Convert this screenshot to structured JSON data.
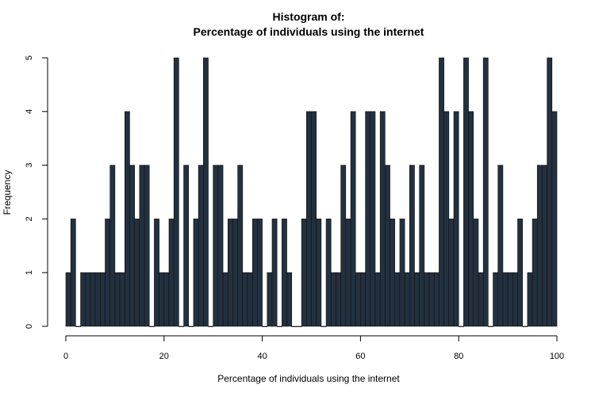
{
  "chart_data": {
    "type": "bar",
    "title": [
      "Histogram of:",
      "Percentage of individuals using the internet"
    ],
    "xlabel": "Percentage of individuals using the internet",
    "ylabel": "Frequency",
    "xlim": [
      0,
      100
    ],
    "ylim": [
      0,
      5
    ],
    "x_ticks": [
      0,
      20,
      40,
      60,
      80,
      100
    ],
    "y_ticks": [
      0,
      1,
      2,
      3,
      4,
      5
    ],
    "bin_width": 1,
    "bin_start": 0,
    "grid": false,
    "values": [
      1,
      2,
      0,
      1,
      1,
      1,
      1,
      1,
      2,
      3,
      1,
      1,
      4,
      3,
      2,
      3,
      3,
      0,
      2,
      1,
      1,
      2,
      5,
      0,
      3,
      0,
      2,
      3,
      5,
      0,
      3,
      3,
      1,
      2,
      2,
      3,
      1,
      1,
      2,
      2,
      0,
      1,
      2,
      0,
      2,
      1,
      0,
      0,
      2,
      4,
      4,
      2,
      0,
      2,
      1,
      1,
      3,
      2,
      4,
      1,
      1,
      4,
      4,
      1,
      4,
      3,
      2,
      1,
      2,
      1,
      3,
      1,
      3,
      1,
      1,
      1,
      5,
      4,
      2,
      4,
      0,
      5,
      4,
      2,
      1,
      5,
      0,
      1,
      3,
      1,
      1,
      1,
      2,
      0,
      1,
      2,
      3,
      3,
      5,
      4
    ]
  }
}
